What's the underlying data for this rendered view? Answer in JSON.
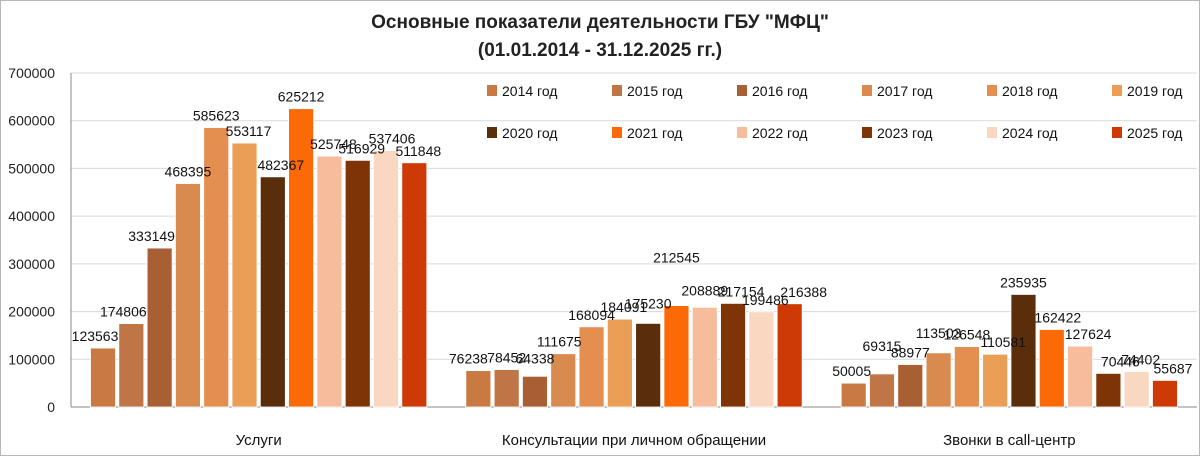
{
  "chart_data": {
    "type": "bar",
    "title": "Основные показатели деятельности ГБУ \"МФЦ\"",
    "subtitle": "(01.01.2014 - 31.12.2025 гг.)",
    "categories": [
      "Услуги",
      "Консультации при личном обращении",
      "Звонки в call-центр"
    ],
    "ylim": [
      0,
      700000
    ],
    "yticks": [
      "0",
      "100000",
      "200000",
      "300000",
      "400000",
      "500000",
      "600000",
      "700000"
    ],
    "grid": true,
    "legend_position": "top-right",
    "series": [
      {
        "name": "2014 год",
        "color": "#c97a42",
        "values": [
          123563,
          76238,
          50005
        ]
      },
      {
        "name": "2015 год",
        "color": "#bf7545",
        "values": [
          174806,
          78452,
          69315
        ]
      },
      {
        "name": "2016 год",
        "color": "#a85f33",
        "values": [
          333149,
          64338,
          88977
        ]
      },
      {
        "name": "2017 год",
        "color": "#d98b4f",
        "values": [
          468395,
          111675,
          113503
        ]
      },
      {
        "name": "2018 год",
        "color": "#e48f4f",
        "values": [
          585623,
          168094,
          126548
        ]
      },
      {
        "name": "2019 год",
        "color": "#eb9e55",
        "values": [
          553117,
          184091,
          110581
        ]
      },
      {
        "name": "2020 год",
        "color": "#5a2e0b",
        "values": [
          482367,
          175230,
          235935
        ]
      },
      {
        "name": "2021 год",
        "color": "#fb6a07",
        "values": [
          625212,
          212545,
          162422
        ]
      },
      {
        "name": "2022 год",
        "color": "#f7bc9c",
        "values": [
          525748,
          208889,
          127624
        ]
      },
      {
        "name": "2023 год",
        "color": "#7e3407",
        "values": [
          516929,
          217154,
          70446
        ]
      },
      {
        "name": "2024 год",
        "color": "#fad7c0",
        "values": [
          537406,
          199486,
          74402
        ]
      },
      {
        "name": "2025 год",
        "color": "#ce3a06",
        "values": [
          511848,
          216388,
          55687
        ]
      }
    ],
    "labels": [
      [
        "123563",
        "76238",
        "50005"
      ],
      [
        "174806",
        "78452",
        "69315"
      ],
      [
        "333149",
        "64338",
        "88977"
      ],
      [
        "468395",
        "111675",
        "113503"
      ],
      [
        "585623",
        "168094",
        "126548"
      ],
      [
        "553117",
        "184091",
        "110581"
      ],
      [
        "482367",
        "175230",
        "235935"
      ],
      [
        "625212",
        "212545",
        "162422"
      ],
      [
        "525748",
        "208889",
        "127624"
      ],
      [
        "516929",
        "217154",
        "70446"
      ],
      [
        "537406",
        "199486",
        "74402"
      ],
      [
        "511848",
        "216388",
        "55687"
      ]
    ]
  }
}
